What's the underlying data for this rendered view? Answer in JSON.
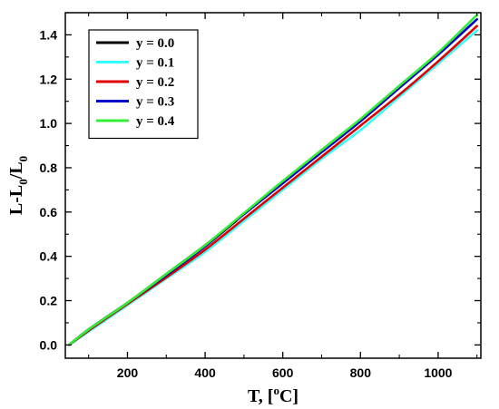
{
  "chart_data": {
    "type": "line",
    "title": "",
    "xlabel": {
      "main": "T, [",
      "sup": "o",
      "tail": "C]"
    },
    "ylabel": {
      "l": "L-L",
      "sub1": "0",
      "slash": "/L",
      "sub2": "0"
    },
    "xlim": [
      40,
      1110
    ],
    "ylim": [
      -0.06,
      1.5
    ],
    "xticks": [
      200,
      400,
      600,
      800,
      1000
    ],
    "xtick_labels": [
      "200",
      "400",
      "600",
      "800",
      "1000"
    ],
    "yticks": [
      0.0,
      0.2,
      0.4,
      0.6,
      0.8,
      1.0,
      1.2,
      1.4
    ],
    "ytick_labels": [
      "0.0",
      "0.2",
      "0.4",
      "0.6",
      "0.8",
      "1.0",
      "1.2",
      "1.4"
    ],
    "grid": false,
    "legend": "top-left",
    "series": [
      {
        "name": "y = 0.0",
        "color": "#000000",
        "x": [
          50,
          100,
          200,
          300,
          400,
          480
        ],
        "y": [
          0.0,
          0.07,
          0.19,
          0.32,
          0.45,
          0.56
        ]
      },
      {
        "name": "y = 0.1",
        "color": "#33ffff",
        "x": [
          50,
          100,
          200,
          300,
          400,
          500,
          600,
          700,
          800,
          900,
          1000,
          1100
        ],
        "y": [
          0.0,
          0.06,
          0.18,
          0.3,
          0.42,
          0.56,
          0.7,
          0.84,
          0.97,
          1.12,
          1.27,
          1.42
        ]
      },
      {
        "name": "y = 0.2",
        "color": "#e00000",
        "x": [
          50,
          100,
          200,
          300,
          400,
          500,
          600,
          700,
          800,
          900,
          1000,
          1100
        ],
        "y": [
          0.0,
          0.065,
          0.185,
          0.305,
          0.43,
          0.57,
          0.71,
          0.85,
          0.99,
          1.13,
          1.28,
          1.44
        ]
      },
      {
        "name": "y = 0.3",
        "color": "#0000cc",
        "x": [
          50,
          100,
          200,
          300,
          400,
          500,
          600,
          700,
          800,
          900,
          1000,
          1100
        ],
        "y": [
          0.0,
          0.07,
          0.19,
          0.315,
          0.445,
          0.59,
          0.73,
          0.87,
          1.01,
          1.16,
          1.31,
          1.47
        ]
      },
      {
        "name": "y = 0.4",
        "color": "#33ee33",
        "x": [
          50,
          100,
          200,
          300,
          400,
          500,
          600,
          700,
          800,
          900,
          1000,
          1100
        ],
        "y": [
          0.0,
          0.07,
          0.19,
          0.32,
          0.45,
          0.595,
          0.74,
          0.88,
          1.02,
          1.17,
          1.32,
          1.49
        ]
      }
    ]
  }
}
